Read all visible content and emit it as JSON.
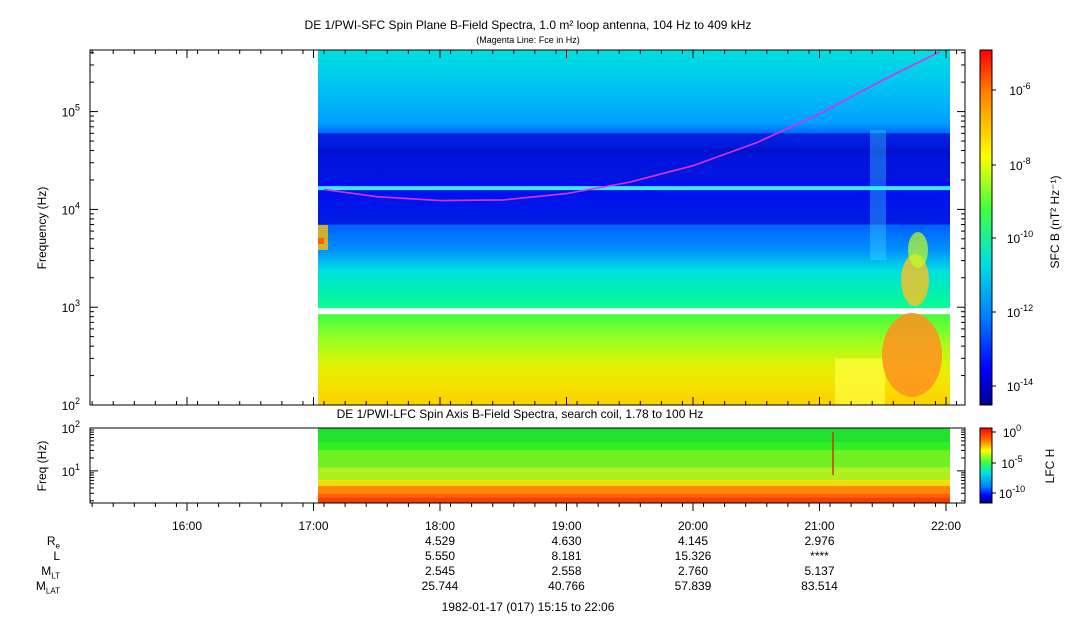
{
  "top_panel": {
    "title": "DE 1/PWI-SFC  Spin Plane B-Field Spectra, 1.0 m² loop antenna, 104 Hz to 409 kHz",
    "subtitle": "(Magenta Line: Fce in Hz)",
    "ylabel": "Frequency (Hz)",
    "colorbar_label": "SFC B (nT² Hz⁻¹)"
  },
  "bottom_panel": {
    "title": "DE 1/PWI-LFC  Spin Axis B-Field Spectra, search coil, 1.78 to 100 Hz",
    "ylabel": "Freq (Hz)",
    "colorbar_label": "LFC H"
  },
  "time_axis": {
    "ticks": [
      "16:00",
      "17:00",
      "18:00",
      "19:00",
      "20:00",
      "21:00",
      "22:00"
    ]
  },
  "ephemeris": {
    "labels": [
      "R",
      "L",
      "M",
      "M"
    ],
    "label_subs": [
      "e",
      "",
      "LT",
      "LAT"
    ],
    "columns": [
      [
        "4.529",
        "5.550",
        "2.545",
        "25.744"
      ],
      [
        "4.630",
        "8.181",
        "2.558",
        "40.766"
      ],
      [
        "4.145",
        "15.326",
        "2.760",
        "57.839"
      ],
      [
        "2.976",
        "****",
        "5.137",
        "83.514"
      ]
    ]
  },
  "footer": "1982-01-17 (017) 15:15 to 22:06",
  "chart_data": [
    {
      "type": "heatmap",
      "title": "DE 1/PWI-SFC  Spin Plane B-Field Spectra, 1.0 m² loop antenna, 104 Hz to 409 kHz",
      "xlabel": "",
      "ylabel": "Frequency (Hz)",
      "x_range": [
        "15:15",
        "22:06"
      ],
      "data_start": "17:05",
      "data_end": "21:57",
      "ylim": [
        100,
        409000
      ],
      "yscale": "log",
      "y_ticks": [
        "10^2",
        "10^3",
        "10^4",
        "10^5"
      ],
      "colorbar": {
        "label": "SFC B (nT² Hz⁻¹)",
        "scale": "log",
        "range": [
          1e-15,
          1e-05
        ],
        "ticks": [
          "10^-6",
          "10^-8",
          "10^-10",
          "10^-12",
          "10^-14"
        ]
      },
      "annotations": [
        "Magenta Line: Fce in Hz"
      ],
      "fce_line": {
        "color": "#e030e0",
        "t": [
          "17:05",
          "17:30",
          "18:00",
          "18:30",
          "19:00",
          "19:30",
          "20:00",
          "20:30",
          "21:00",
          "21:30",
          "21:57"
        ],
        "hz": [
          16000,
          13500,
          12300,
          12500,
          14500,
          19000,
          28000,
          48000,
          95000,
          210000,
          409000
        ]
      },
      "colors": [
        "#00008c",
        "#0000ff",
        "#0080ff",
        "#00e0e0",
        "#00ff80",
        "#a0ff00",
        "#ffff00",
        "#ff8000",
        "#ff0000"
      ]
    },
    {
      "type": "heatmap",
      "title": "DE 1/PWI-LFC  Spin Axis B-Field Spectra, search coil, 1.78 to 100 Hz",
      "ylabel": "Freq (Hz)",
      "ylim": [
        1.78,
        100
      ],
      "yscale": "log",
      "y_ticks": [
        "10^1",
        "10^2"
      ],
      "colorbar": {
        "label": "LFC H",
        "scale": "log",
        "range": [
          1e-12,
          1
        ],
        "ticks": [
          "10^0",
          "10^-5",
          "10^-10"
        ]
      }
    }
  ]
}
